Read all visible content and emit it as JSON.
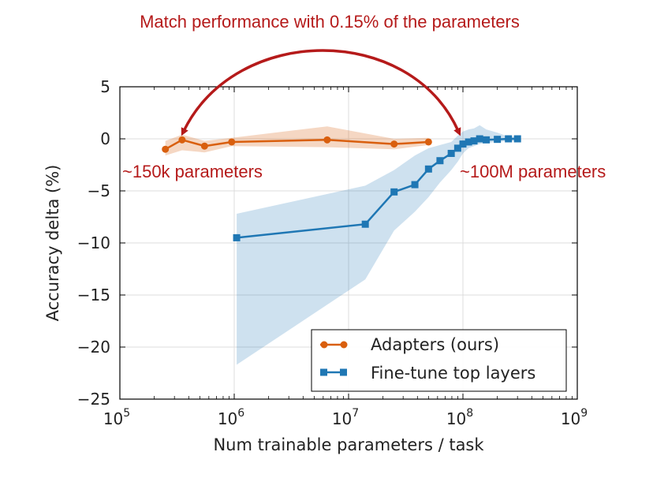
{
  "chart_data": {
    "type": "line",
    "title": "",
    "xlabel": "Num trainable parameters / task",
    "ylabel": "Accuracy delta (%)",
    "x_scale": "log",
    "xlim": [
      100000,
      1000000000
    ],
    "ylim": [
      -25,
      5
    ],
    "x_ticks": [
      {
        "value": 100000,
        "base": "10",
        "exp": "5"
      },
      {
        "value": 1000000,
        "base": "10",
        "exp": "6"
      },
      {
        "value": 10000000,
        "base": "10",
        "exp": "7"
      },
      {
        "value": 100000000,
        "base": "10",
        "exp": "8"
      },
      {
        "value": 1000000000,
        "base": "10",
        "exp": "9"
      }
    ],
    "y_ticks": [
      {
        "value": 5,
        "label": "5"
      },
      {
        "value": 0,
        "label": "0"
      },
      {
        "value": -5,
        "label": "−5"
      },
      {
        "value": -10,
        "label": "−10"
      },
      {
        "value": -15,
        "label": "−15"
      },
      {
        "value": -20,
        "label": "−20"
      },
      {
        "value": -25,
        "label": "−25"
      }
    ],
    "grid": true,
    "legend_position": "bottom-right",
    "series": [
      {
        "name": "Adapters (ours)",
        "color": "#d95f0e",
        "marker": "circle",
        "x": [
          250000,
          350000,
          550000,
          950000,
          6500000,
          25000000,
          50000000
        ],
        "y": [
          -1.0,
          -0.1,
          -0.7,
          -0.3,
          -0.1,
          -0.5,
          -0.3
        ],
        "band_low": [
          -1.6,
          -1.1,
          -1.3,
          -0.7,
          -0.8,
          -1.0,
          -0.6
        ],
        "band_high": [
          -0.2,
          0.4,
          -0.2,
          0.1,
          1.2,
          0.0,
          0.1
        ]
      },
      {
        "name": "Fine-tune top layers",
        "color": "#1f77b4",
        "marker": "square",
        "x": [
          1050000,
          14000000,
          25000000,
          38000000,
          50000000,
          63000000,
          79000000,
          90000000,
          100000000,
          112000000,
          125000000,
          140000000,
          160000000,
          200000000,
          250000000,
          300000000
        ],
        "y": [
          -9.5,
          -8.2,
          -5.1,
          -4.4,
          -2.9,
          -2.1,
          -1.4,
          -0.9,
          -0.5,
          -0.3,
          -0.2,
          0.0,
          -0.1,
          -0.05,
          0.0,
          0.0
        ],
        "band_low": [
          -21.7,
          -13.5,
          -8.8,
          -7.0,
          -5.6,
          -4.2,
          -3.0,
          -2.2,
          -1.4,
          -0.9,
          -0.7,
          -0.5,
          -0.4,
          -0.3,
          -0.2,
          -0.2
        ],
        "band_high": [
          -7.2,
          -4.5,
          -3.0,
          -1.6,
          -0.9,
          -0.6,
          -0.3,
          0.3,
          0.7,
          0.9,
          1.0,
          1.3,
          0.9,
          0.6,
          0.2,
          0.2
        ]
      }
    ],
    "annotations": {
      "headline": "Match performance with 0.15% of the parameters",
      "left_label": "~150k parameters",
      "right_label": "~100M parameters",
      "color": "#b51a1a"
    }
  }
}
